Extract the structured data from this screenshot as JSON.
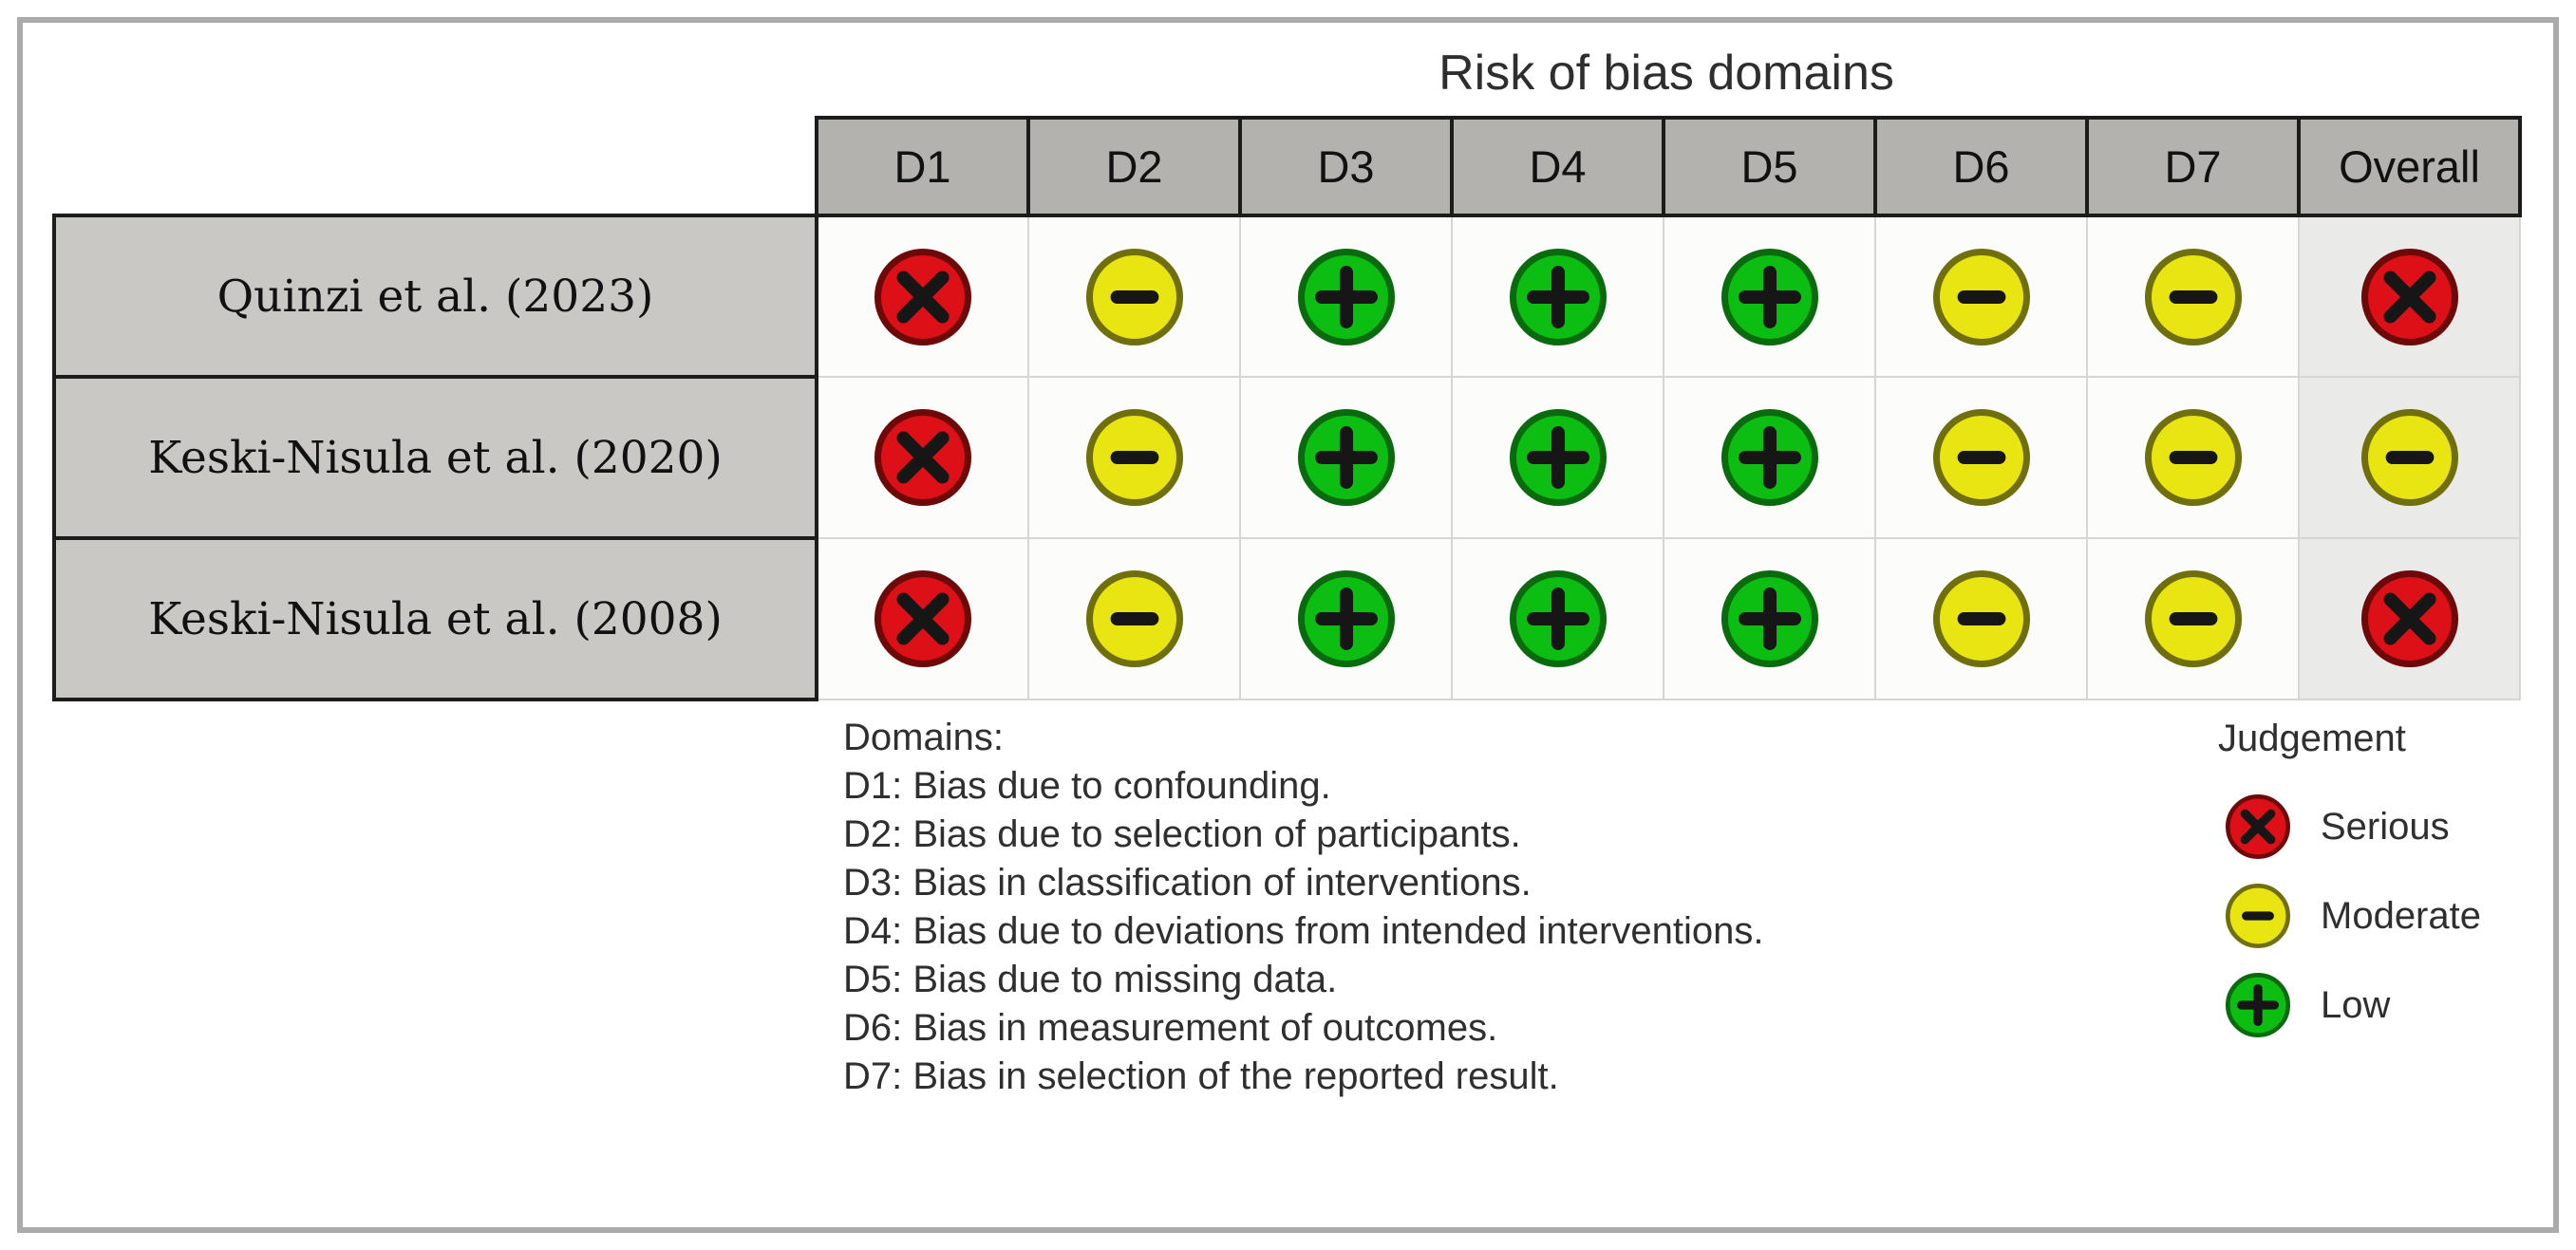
{
  "chart_data": {
    "type": "table",
    "title": "Risk of bias domains",
    "columns": [
      "D1",
      "D2",
      "D3",
      "D4",
      "D5",
      "D6",
      "D7",
      "Overall"
    ],
    "studies": [
      "Quinzi et al. (2023)",
      "Keski-Nisula et al. (2020)",
      "Keski-Nisula et al. (2008)"
    ],
    "judgements": [
      [
        "serious",
        "moderate",
        "low",
        "low",
        "low",
        "moderate",
        "moderate",
        "serious"
      ],
      [
        "serious",
        "moderate",
        "low",
        "low",
        "low",
        "moderate",
        "moderate",
        "moderate"
      ],
      [
        "serious",
        "moderate",
        "low",
        "low",
        "low",
        "moderate",
        "moderate",
        "serious"
      ]
    ]
  },
  "domains_legend": {
    "heading": "Domains:",
    "lines": [
      "D1: Bias due to confounding.",
      "D2: Bias due to selection of participants.",
      "D3: Bias in classification of interventions.",
      "D4: Bias due to deviations from intended interventions.",
      "D5: Bias due to missing data.",
      "D6: Bias in measurement of outcomes.",
      "D7: Bias in selection of the reported result."
    ]
  },
  "judgement_legend": {
    "title": "Judgement",
    "order": [
      "serious",
      "moderate",
      "low"
    ]
  },
  "judgement_types": {
    "serious": {
      "label": "Serious",
      "symbol": "x",
      "fill": "#dc1016",
      "stroke": "#6e0909"
    },
    "moderate": {
      "label": "Moderate",
      "symbol": "minus",
      "fill": "#e9e512",
      "stroke": "#6f6f0e"
    },
    "low": {
      "label": "Low",
      "symbol": "plus",
      "fill": "#0cbd12",
      "stroke": "#0a6a0e"
    }
  },
  "colors": {
    "frame_border": "#ababab",
    "header_bg": "#b3b2af",
    "label_bg": "#c9c8c5",
    "overall_bg": "#eaeae8",
    "cell_border": "#d6d6d4",
    "table_border": "#1c1c1c",
    "symbol": "#161616"
  }
}
